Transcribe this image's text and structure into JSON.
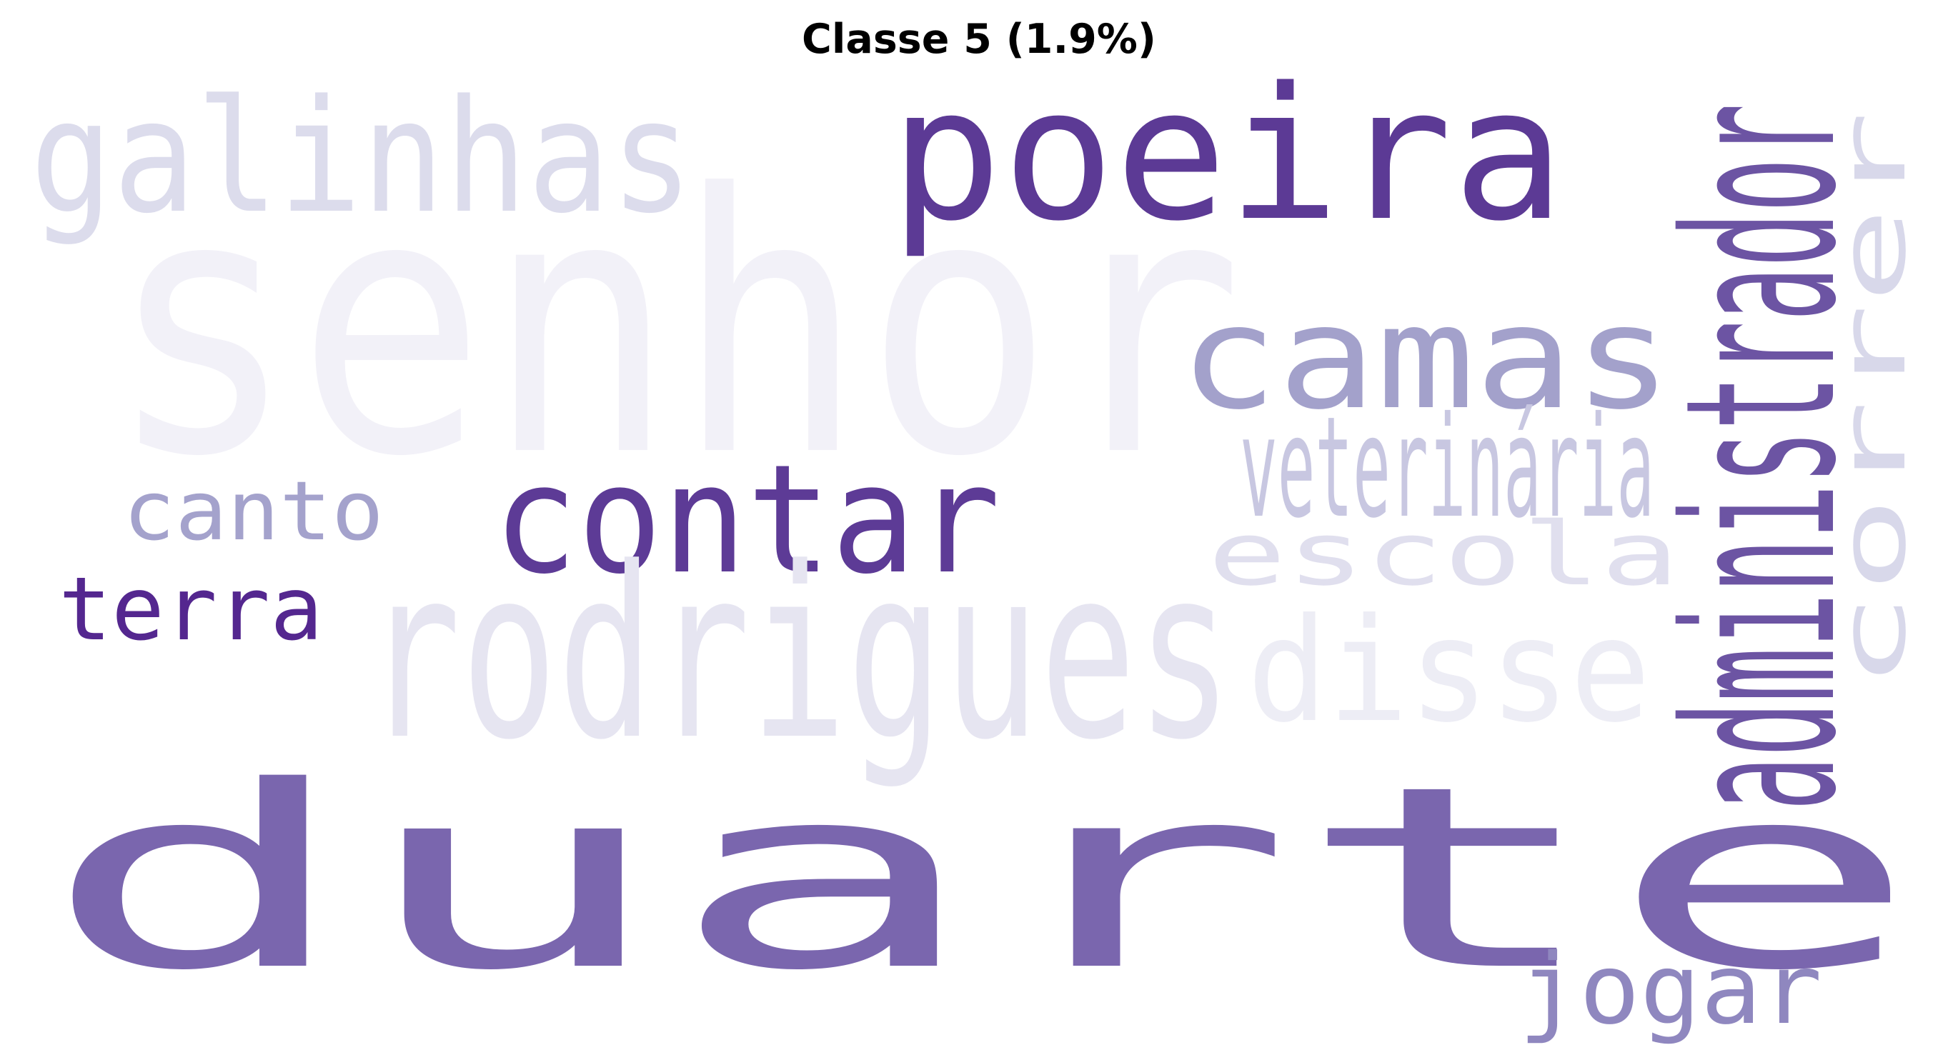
{
  "title": "Classe 5 (1.9%)",
  "words": [
    {
      "text": "senhor",
      "color": "#f2f1f8"
    },
    {
      "text": "galinhas",
      "color": "#dcdcec"
    },
    {
      "text": "poeira",
      "color": "#5c3a95"
    },
    {
      "text": "camas",
      "color": "#a3a1cb"
    },
    {
      "text": "veterinária",
      "color": "#c8c7e1"
    },
    {
      "text": "contar",
      "color": "#5d3b96"
    },
    {
      "text": "canto",
      "color": "#a4a2cc"
    },
    {
      "text": "escola",
      "color": "#e0dfee"
    },
    {
      "text": "terra",
      "color": "#54278f"
    },
    {
      "text": "rodrigues",
      "color": "#e6e5f1"
    },
    {
      "text": "disse",
      "color": "#ededf5"
    },
    {
      "text": "duarte",
      "color": "#7a66ae"
    },
    {
      "text": "jogar",
      "color": "#8f87bf"
    },
    {
      "text": "administrador",
      "color": "#6c54a3"
    },
    {
      "text": "correr",
      "color": "#d8d8ea"
    }
  ]
}
